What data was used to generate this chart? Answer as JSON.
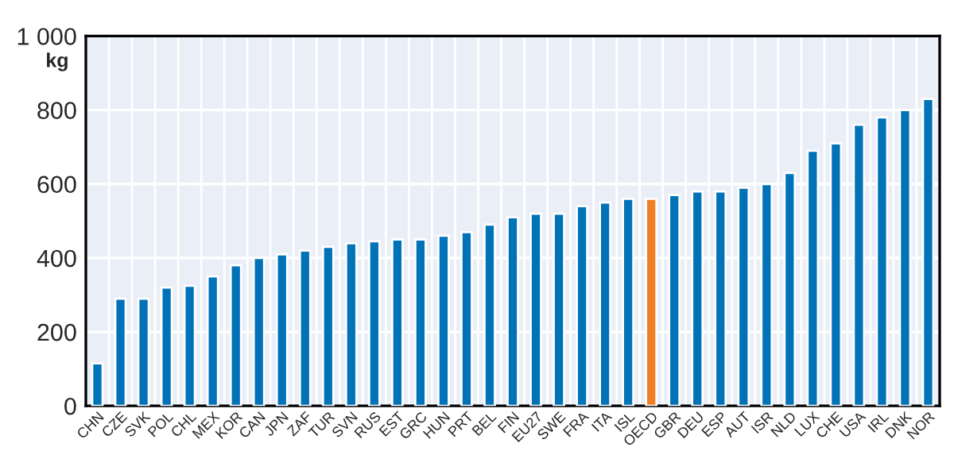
{
  "chart_data": {
    "type": "bar",
    "ylabel": "kg",
    "categories": [
      "CHN",
      "CZE",
      "SVK",
      "POL",
      "CHL",
      "MEX",
      "KOR",
      "CAN",
      "JPN",
      "ZAF",
      "TUR",
      "SVN",
      "RUS",
      "EST",
      "GRC",
      "HUN",
      "PRT",
      "BEL",
      "FIN",
      "EU27",
      "SWE",
      "FRA",
      "ITA",
      "ISL",
      "OECD",
      "GBR",
      "DEU",
      "ESP",
      "AUT",
      "ISR",
      "NLD",
      "LUX",
      "CHE",
      "USA",
      "IRL",
      "DNK",
      "NOR"
    ],
    "values": [
      115,
      290,
      290,
      320,
      325,
      350,
      380,
      400,
      410,
      420,
      430,
      440,
      445,
      450,
      450,
      460,
      470,
      490,
      510,
      520,
      520,
      540,
      550,
      560,
      560,
      570,
      580,
      580,
      590,
      600,
      630,
      690,
      710,
      760,
      780,
      800,
      830
    ],
    "colors": [
      "#0072b8",
      "#0072b8",
      "#0072b8",
      "#0072b8",
      "#0072b8",
      "#0072b8",
      "#0072b8",
      "#0072b8",
      "#0072b8",
      "#0072b8",
      "#0072b8",
      "#0072b8",
      "#0072b8",
      "#0072b8",
      "#0072b8",
      "#0072b8",
      "#0072b8",
      "#0072b8",
      "#0072b8",
      "#0072b8",
      "#0072b8",
      "#0072b8",
      "#0072b8",
      "#0072b8",
      "#f07f23",
      "#0072b8",
      "#0072b8",
      "#0072b8",
      "#0072b8",
      "#0072b8",
      "#0072b8",
      "#0072b8",
      "#0072b8",
      "#0072b8",
      "#0072b8",
      "#0072b8",
      "#0072b8"
    ],
    "ylim": [
      0,
      1000
    ],
    "yticks": [
      0,
      200,
      400,
      600,
      800,
      {
        "value": 1000,
        "label": "1 000"
      }
    ],
    "grid": true
  }
}
